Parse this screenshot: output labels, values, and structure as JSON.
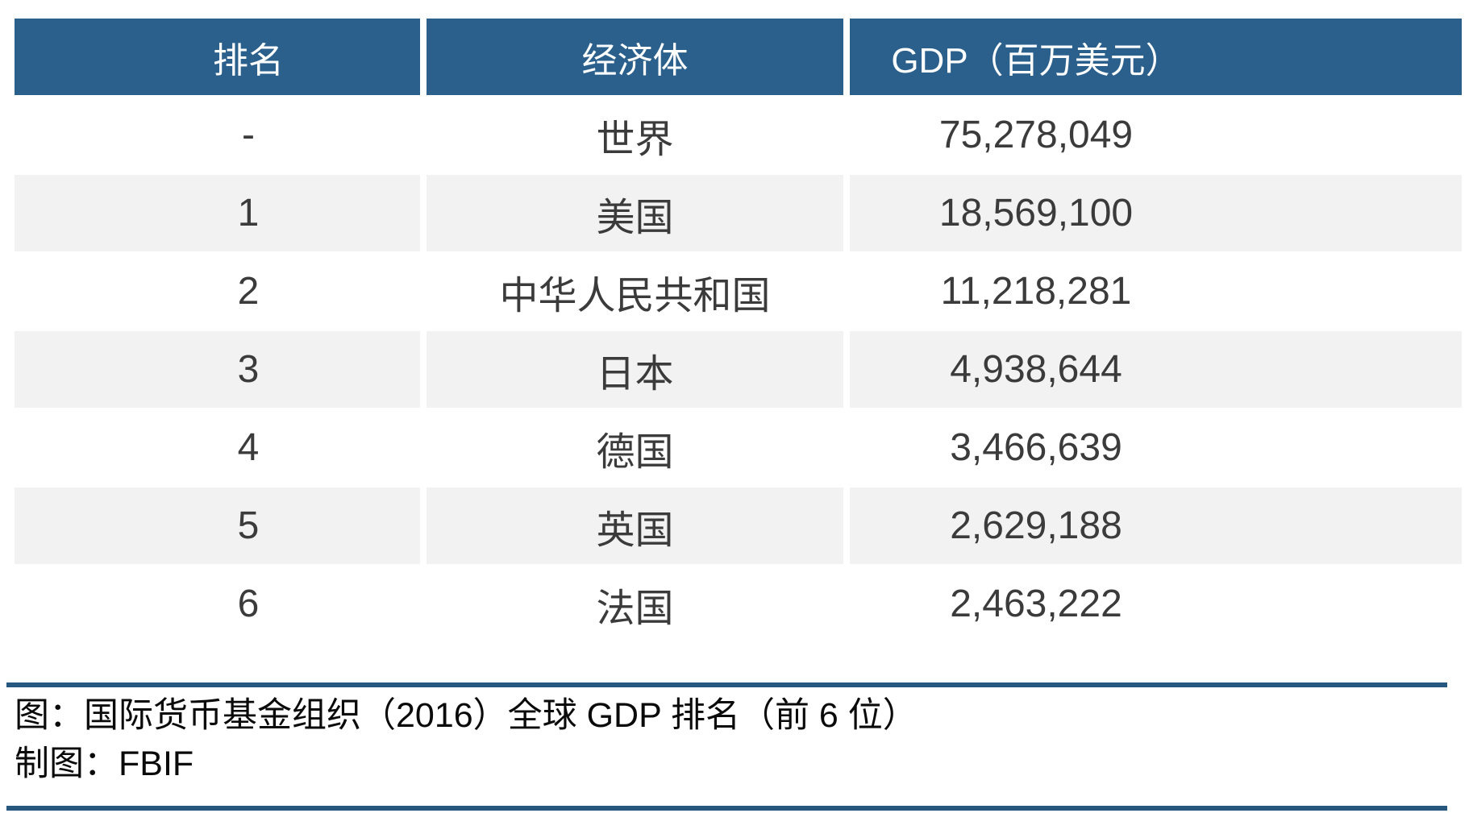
{
  "table": {
    "columns": [
      {
        "label": "排名"
      },
      {
        "label": "经济体"
      },
      {
        "label": "GDP（百万美元）"
      }
    ],
    "rows": [
      {
        "rank": "-",
        "economy": "世界",
        "gdp": "75,278,049"
      },
      {
        "rank": "1",
        "economy": "美国",
        "gdp": "18,569,100"
      },
      {
        "rank": "2",
        "economy": "中华人民共和国",
        "gdp": "11,218,281"
      },
      {
        "rank": "3",
        "economy": "日本",
        "gdp": "4,938,644"
      },
      {
        "rank": "4",
        "economy": "德国",
        "gdp": "3,466,639"
      },
      {
        "rank": "5",
        "economy": "英国",
        "gdp": "2,629,188"
      },
      {
        "rank": "6",
        "economy": "法国",
        "gdp": "2,463,222"
      }
    ]
  },
  "caption": {
    "line1": "图：国际货币基金组织（2016）全球 GDP 排名（前 6 位）",
    "line2": "制图：FBIF"
  },
  "colors": {
    "header_bg": "#2B608D",
    "alt_row_bg": "#F2F2F2",
    "divider": "#26587F",
    "body_text": "#3B3B3B",
    "caption_text": "#0A0A0A"
  },
  "chart_data": {
    "type": "table",
    "title": "国际货币基金组织（2016）全球 GDP 排名（前 6 位）",
    "source_credit": "制图：FBIF",
    "columns": [
      "排名",
      "经济体",
      "GDP（百万美元）"
    ],
    "rows": [
      [
        "-",
        "世界",
        75278049
      ],
      [
        "1",
        "美国",
        18569100
      ],
      [
        "2",
        "中华人民共和国",
        11218281
      ],
      [
        "3",
        "日本",
        4938644
      ],
      [
        "4",
        "德国",
        3466639
      ],
      [
        "5",
        "英国",
        2629188
      ],
      [
        "6",
        "法国",
        2463222
      ]
    ],
    "value_unit": "百万美元",
    "layout_hints": {
      "header_style": "dark-blue background, white centered text",
      "zebra_rows": "rows 美国/日本/英国 shaded light gray",
      "dividers": "horizontal dark-blue rules above caption and at bottom"
    }
  }
}
